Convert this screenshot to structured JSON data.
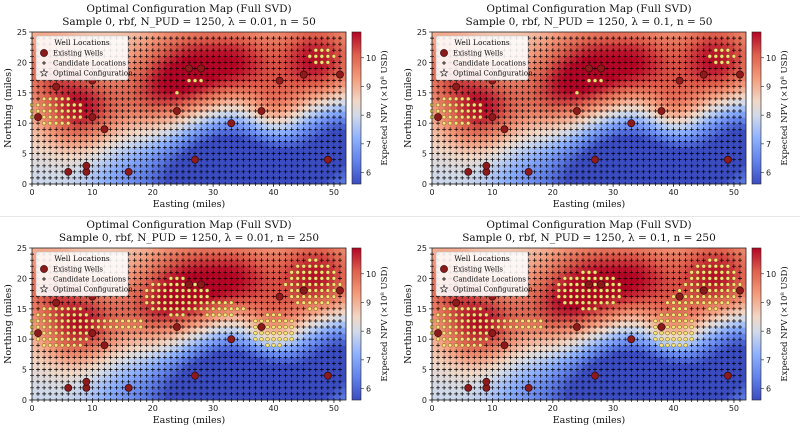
{
  "colors": {
    "existing_well": "#8b1a1a",
    "candidate": "#000000",
    "optimal_fill": "#f5e27a",
    "heatmap_low": "#3b4cc0",
    "heatmap_high": "#b40426"
  },
  "chart_data": [
    {
      "type": "heatmap",
      "title": "Optimal Configuration Map (Full SVD)",
      "subtitle": "Sample 0, rbf, N_PUD = 1250, λ = 0.01, n = 50",
      "xlabel": "Easting (miles)",
      "ylabel": "Northing (miles)",
      "colorbar_label": "Expected NPV (×10⁸ USD)",
      "xlim": [
        0,
        52
      ],
      "ylim": [
        0,
        25
      ],
      "xticks": [
        0,
        10,
        20,
        30,
        40,
        50
      ],
      "yticks": [
        0,
        5,
        10,
        15,
        20,
        25
      ],
      "clim": [
        5.6,
        10.9
      ],
      "cticks": [
        6,
        7,
        8,
        9,
        10
      ],
      "legend": {
        "title": "Well Locations",
        "position": "top-left",
        "entries": [
          "Existing Wells",
          "Candidate Locations",
          "Optimal Configuration"
        ]
      },
      "existing_wells": [
        [
          1,
          11
        ],
        [
          4,
          16
        ],
        [
          6,
          2
        ],
        [
          9,
          2
        ],
        [
          9,
          3
        ],
        [
          10,
          17
        ],
        [
          10,
          11
        ],
        [
          12,
          9
        ],
        [
          16,
          2
        ],
        [
          24,
          12
        ],
        [
          27,
          4
        ],
        [
          28,
          19
        ],
        [
          26,
          19
        ],
        [
          33,
          10
        ],
        [
          38,
          12
        ],
        [
          41,
          17
        ],
        [
          45,
          18
        ],
        [
          49,
          4
        ],
        [
          51,
          18
        ]
      ],
      "optimal_region": "n50"
    },
    {
      "type": "heatmap",
      "title": "Optimal Configuration Map (Full SVD)",
      "subtitle": "Sample 0, rbf, N_PUD = 1250, λ = 0.1, n = 50",
      "xlabel": "Easting (miles)",
      "ylabel": "Northing (miles)",
      "colorbar_label": "Expected NPV (×10⁸ USD)",
      "xlim": [
        0,
        52
      ],
      "ylim": [
        0,
        25
      ],
      "xticks": [
        0,
        10,
        20,
        30,
        40,
        50
      ],
      "yticks": [
        0,
        5,
        10,
        15,
        20,
        25
      ],
      "clim": [
        5.6,
        10.9
      ],
      "cticks": [
        6,
        7,
        8,
        9,
        10
      ],
      "legend": {
        "title": "Well Locations",
        "position": "top-left",
        "entries": [
          "Existing Wells",
          "Candidate Locations",
          "Optimal Configuration"
        ]
      },
      "existing_wells": [
        [
          1,
          11
        ],
        [
          4,
          16
        ],
        [
          6,
          2
        ],
        [
          9,
          2
        ],
        [
          9,
          3
        ],
        [
          10,
          17
        ],
        [
          10,
          11
        ],
        [
          12,
          9
        ],
        [
          16,
          2
        ],
        [
          24,
          12
        ],
        [
          27,
          4
        ],
        [
          28,
          19
        ],
        [
          26,
          19
        ],
        [
          33,
          10
        ],
        [
          38,
          12
        ],
        [
          41,
          17
        ],
        [
          45,
          18
        ],
        [
          49,
          4
        ],
        [
          51,
          18
        ]
      ],
      "optimal_region": "n50"
    },
    {
      "type": "heatmap",
      "title": "Optimal Configuration Map (Full SVD)",
      "subtitle": "Sample 0, rbf, N_PUD = 1250, λ = 0.01, n = 250",
      "xlabel": "Easting (miles)",
      "ylabel": "Northing (miles)",
      "colorbar_label": "Expected NPV (×10⁸ USD)",
      "xlim": [
        0,
        52
      ],
      "ylim": [
        0,
        25
      ],
      "xticks": [
        0,
        10,
        20,
        30,
        40,
        50
      ],
      "yticks": [
        0,
        5,
        10,
        15,
        20,
        25
      ],
      "clim": [
        5.6,
        10.9
      ],
      "cticks": [
        6,
        7,
        8,
        9,
        10
      ],
      "legend": {
        "title": "Well Locations",
        "position": "top-left",
        "entries": [
          "Existing Wells",
          "Candidate Locations",
          "Optimal Configuration"
        ]
      },
      "existing_wells": [
        [
          1,
          11
        ],
        [
          4,
          16
        ],
        [
          6,
          2
        ],
        [
          9,
          2
        ],
        [
          9,
          3
        ],
        [
          10,
          17
        ],
        [
          10,
          11
        ],
        [
          12,
          9
        ],
        [
          16,
          2
        ],
        [
          24,
          12
        ],
        [
          27,
          4
        ],
        [
          28,
          19
        ],
        [
          26,
          19
        ],
        [
          33,
          10
        ],
        [
          38,
          12
        ],
        [
          41,
          17
        ],
        [
          45,
          18
        ],
        [
          49,
          4
        ],
        [
          51,
          18
        ]
      ],
      "optimal_region": "n250"
    },
    {
      "type": "heatmap",
      "title": "Optimal Configuration Map (Full SVD)",
      "subtitle": "Sample 0, rbf, N_PUD = 1250, λ = 0.1, n = 250",
      "xlabel": "Easting (miles)",
      "ylabel": "Northing (miles)",
      "colorbar_label": "Expected NPV (×10⁸ USD)",
      "xlim": [
        0,
        52
      ],
      "ylim": [
        0,
        25
      ],
      "xticks": [
        0,
        10,
        20,
        30,
        40,
        50
      ],
      "yticks": [
        0,
        5,
        10,
        15,
        20,
        25
      ],
      "clim": [
        5.6,
        10.9
      ],
      "cticks": [
        6,
        7,
        8,
        9,
        10
      ],
      "legend": {
        "title": "Well Locations",
        "position": "top-left",
        "entries": [
          "Existing Wells",
          "Candidate Locations",
          "Optimal Configuration"
        ]
      },
      "existing_wells": [
        [
          1,
          11
        ],
        [
          4,
          16
        ],
        [
          6,
          2
        ],
        [
          9,
          2
        ],
        [
          9,
          3
        ],
        [
          10,
          17
        ],
        [
          10,
          11
        ],
        [
          12,
          9
        ],
        [
          16,
          2
        ],
        [
          24,
          12
        ],
        [
          27,
          4
        ],
        [
          28,
          19
        ],
        [
          26,
          19
        ],
        [
          33,
          10
        ],
        [
          38,
          12
        ],
        [
          41,
          17
        ],
        [
          45,
          18
        ],
        [
          49,
          4
        ],
        [
          51,
          18
        ]
      ],
      "optimal_region": "n250b"
    }
  ]
}
